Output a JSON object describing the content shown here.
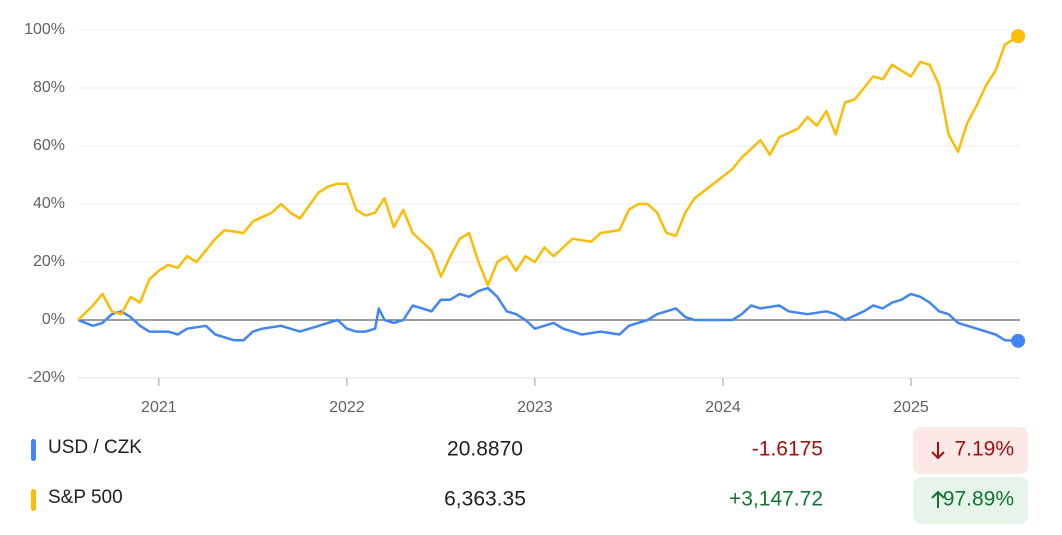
{
  "chart_data": {
    "type": "line",
    "xlim": [
      2020.57,
      2025.58
    ],
    "xticks": [
      2021,
      2022,
      2023,
      2024,
      2025
    ],
    "ylim": [
      -20,
      100
    ],
    "yticks": [
      {
        "value": -20,
        "label": "-20%"
      },
      {
        "value": 0,
        "label": "0%"
      },
      {
        "value": 20,
        "label": "20%"
      },
      {
        "value": 40,
        "label": "40%"
      },
      {
        "value": 60,
        "label": "60%"
      },
      {
        "value": 80,
        "label": "80%"
      },
      {
        "value": 100,
        "label": "100%"
      }
    ],
    "grid": true,
    "series": [
      {
        "name": "USD / CZK",
        "color": "#4285f4",
        "x": [
          2020.57,
          2020.65,
          2020.7,
          2020.75,
          2020.8,
          2020.85,
          2020.9,
          2020.95,
          2021.05,
          2021.1,
          2021.15,
          2021.25,
          2021.3,
          2021.4,
          2021.45,
          2021.5,
          2021.55,
          2021.65,
          2021.75,
          2021.85,
          2021.95,
          2022.0,
          2022.05,
          2022.1,
          2022.15,
          2022.17,
          2022.2,
          2022.25,
          2022.3,
          2022.35,
          2022.45,
          2022.5,
          2022.55,
          2022.6,
          2022.65,
          2022.7,
          2022.75,
          2022.8,
          2022.85,
          2022.9,
          2022.95,
          2023.0,
          2023.05,
          2023.1,
          2023.15,
          2023.2,
          2023.25,
          2023.35,
          2023.45,
          2023.5,
          2023.6,
          2023.65,
          2023.7,
          2023.75,
          2023.8,
          2023.85,
          2023.95,
          2024.05,
          2024.1,
          2024.15,
          2024.2,
          2024.3,
          2024.35,
          2024.45,
          2024.55,
          2024.6,
          2024.65,
          2024.75,
          2024.8,
          2024.85,
          2024.9,
          2024.95,
          2025.0,
          2025.05,
          2025.1,
          2025.15,
          2025.2,
          2025.25,
          2025.3,
          2025.4,
          2025.45,
          2025.5,
          2025.57
        ],
        "values": [
          0,
          -2,
          -1,
          2,
          3,
          1,
          -2,
          -4,
          -4,
          -5,
          -3,
          -2,
          -5,
          -7,
          -7,
          -4,
          -3,
          -2,
          -4,
          -2,
          0,
          -3,
          -4,
          -4,
          -3,
          4,
          0,
          -1,
          0,
          5,
          3,
          7,
          7,
          9,
          8,
          10,
          11,
          8,
          3,
          2,
          0,
          -3,
          -2,
          -1,
          -3,
          -4,
          -5,
          -4,
          -5,
          -2,
          0,
          2,
          3,
          4,
          1,
          0,
          0,
          0,
          2,
          5,
          4,
          5,
          3,
          2,
          3,
          2,
          0,
          3,
          5,
          4,
          6,
          7,
          9,
          8,
          6,
          3,
          2,
          -1,
          -2,
          -4,
          -5,
          -7,
          -7.19
        ]
      },
      {
        "name": "S&P 500",
        "color": "#fbbc04",
        "x": [
          2020.57,
          2020.65,
          2020.7,
          2020.75,
          2020.8,
          2020.85,
          2020.9,
          2020.95,
          2021.0,
          2021.05,
          2021.1,
          2021.15,
          2021.2,
          2021.3,
          2021.35,
          2021.45,
          2021.5,
          2021.6,
          2021.65,
          2021.7,
          2021.75,
          2021.85,
          2021.9,
          2021.95,
          2022.0,
          2022.05,
          2022.1,
          2022.15,
          2022.2,
          2022.25,
          2022.3,
          2022.35,
          2022.45,
          2022.5,
          2022.55,
          2022.6,
          2022.65,
          2022.7,
          2022.75,
          2022.8,
          2022.85,
          2022.9,
          2022.95,
          2023.0,
          2023.05,
          2023.1,
          2023.15,
          2023.2,
          2023.3,
          2023.35,
          2023.45,
          2023.5,
          2023.55,
          2023.6,
          2023.65,
          2023.7,
          2023.75,
          2023.8,
          2023.85,
          2023.95,
          2024.05,
          2024.1,
          2024.15,
          2024.2,
          2024.25,
          2024.3,
          2024.4,
          2024.45,
          2024.5,
          2024.55,
          2024.6,
          2024.65,
          2024.7,
          2024.8,
          2024.85,
          2024.9,
          2024.95,
          2025.0,
          2025.05,
          2025.1,
          2025.15,
          2025.2,
          2025.25,
          2025.3,
          2025.35,
          2025.4,
          2025.45,
          2025.5,
          2025.55,
          2025.57
        ],
        "values": [
          0,
          5,
          9,
          3,
          2,
          8,
          6,
          14,
          17,
          19,
          18,
          22,
          20,
          28,
          31,
          30,
          34,
          37,
          40,
          37,
          35,
          44,
          46,
          47,
          47,
          38,
          36,
          37,
          42,
          32,
          38,
          30,
          24,
          15,
          22,
          28,
          30,
          20,
          12,
          20,
          22,
          17,
          22,
          20,
          25,
          22,
          25,
          28,
          27,
          30,
          31,
          38,
          40,
          40,
          37,
          30,
          29,
          37,
          42,
          47,
          52,
          56,
          59,
          62,
          57,
          63,
          66,
          70,
          67,
          72,
          64,
          75,
          76,
          84,
          83,
          88,
          86,
          84,
          89,
          88,
          81,
          64,
          58,
          68,
          74,
          81,
          86,
          95,
          97,
          97.89
        ]
      }
    ],
    "summary": [
      {
        "price": "20.8870",
        "change": "-1.6175",
        "percent": "7.19%",
        "direction": "down"
      },
      {
        "price": "6,363.35",
        "change": "+3,147.72",
        "percent": "97.89%",
        "direction": "up"
      }
    ]
  }
}
